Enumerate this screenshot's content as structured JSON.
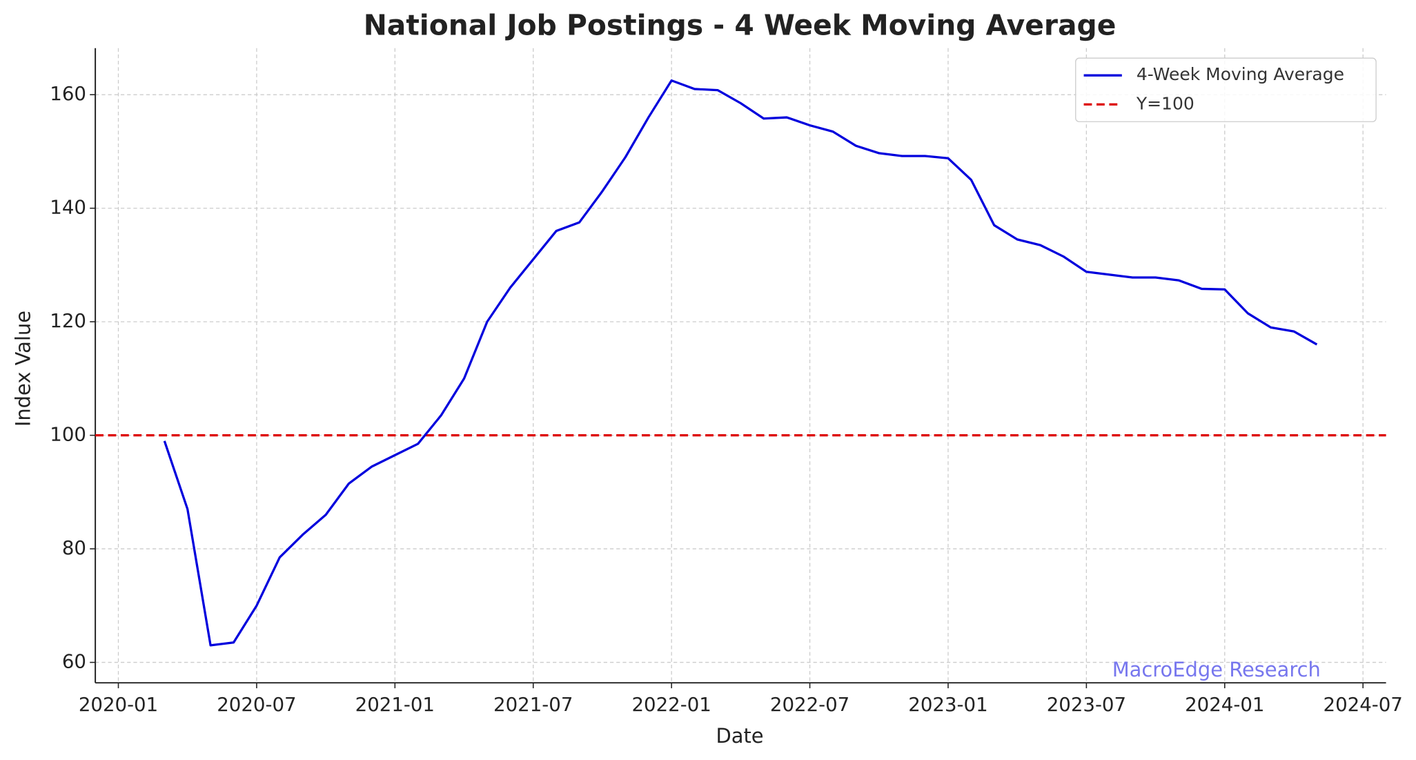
{
  "chart_data": {
    "type": "line",
    "title": "National Job Postings - 4 Week Moving Average",
    "x_label": "Date",
    "y_label": "Index Value",
    "x": [
      "2020-03",
      "2020-04",
      "2020-05",
      "2020-06",
      "2020-07",
      "2020-08",
      "2020-09",
      "2020-10",
      "2020-11",
      "2020-12",
      "2021-01",
      "2021-02",
      "2021-03",
      "2021-04",
      "2021-05",
      "2021-06",
      "2021-07",
      "2021-08",
      "2021-09",
      "2021-10",
      "2021-11",
      "2021-12",
      "2022-01",
      "2022-02",
      "2022-03",
      "2022-04",
      "2022-05",
      "2022-06",
      "2022-07",
      "2022-08",
      "2022-09",
      "2022-10",
      "2022-11",
      "2022-12",
      "2023-01",
      "2023-02",
      "2023-03",
      "2023-04",
      "2023-05",
      "2023-06",
      "2023-07",
      "2023-08",
      "2023-09",
      "2023-10",
      "2023-11",
      "2023-12",
      "2024-01",
      "2024-02",
      "2024-03",
      "2024-04",
      "2024-05"
    ],
    "series": [
      {
        "name": "4-Week Moving Average",
        "color": "#0000dd",
        "values": [
          99,
          87,
          63,
          63.5,
          70,
          78.5,
          82.5,
          86,
          91.5,
          94.5,
          96.5,
          98.5,
          103.5,
          110,
          120,
          126,
          131,
          136,
          137.5,
          143,
          149,
          156,
          162.5,
          161,
          160.8,
          158.5,
          155.8,
          156,
          154.6,
          153.5,
          151,
          149.7,
          149.2,
          149.2,
          148.8,
          145,
          137,
          134.5,
          133.5,
          131.5,
          128.8,
          128.3,
          127.8,
          127.8,
          127.3,
          125.8,
          125.7,
          121.5,
          119,
          118.3,
          116
        ]
      }
    ],
    "reference_line": {
      "name": "Y=100",
      "value": 100,
      "color": "#dd0000",
      "style": "dashed"
    },
    "annotation": "MacroEdge Research",
    "xlim": [
      "2019-12",
      "2024-08"
    ],
    "xticks": [
      "2020-01",
      "2020-07",
      "2021-01",
      "2021-07",
      "2022-01",
      "2022-07",
      "2023-01",
      "2023-07",
      "2024-01",
      "2024-07"
    ],
    "ylim": [
      56.4,
      168.2
    ],
    "yticks": [
      60,
      80,
      100,
      120,
      140,
      160
    ],
    "grid": true,
    "legend": "upper right"
  }
}
